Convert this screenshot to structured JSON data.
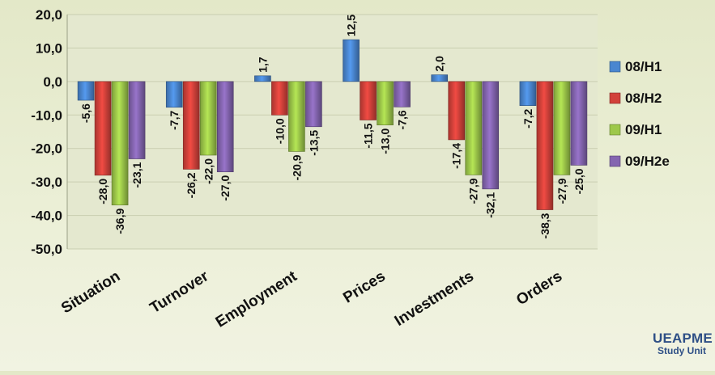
{
  "chart_data": {
    "type": "bar",
    "title": "",
    "categories": [
      "Situation",
      "Turnover",
      "Employment",
      "Prices",
      "Investments",
      "Orders"
    ],
    "series": [
      {
        "name": "08/H1",
        "values": [
          -5.6,
          -7.7,
          1.7,
          12.5,
          2.0,
          -7.2
        ],
        "color": "#4a86d0"
      },
      {
        "name": "08/H2",
        "values": [
          -28.0,
          -26.2,
          -10.0,
          -11.5,
          -17.4,
          -38.3
        ],
        "color": "#d2413a"
      },
      {
        "name": "09/H1",
        "values": [
          -36.9,
          -22.0,
          -20.9,
          -13.0,
          -27.9,
          -27.9
        ],
        "color": "#9dc84a"
      },
      {
        "name": "09/H2e",
        "values": [
          -23.1,
          -27.0,
          -13.5,
          -7.6,
          -32.1,
          -25.0
        ],
        "color": "#8465b0"
      }
    ],
    "value_labels": [
      [
        "-5,6",
        "-7,7",
        "1,7",
        "12,5",
        "2,0",
        "-7,2"
      ],
      [
        "-28,0",
        "-26,2",
        "-10,0",
        "-11,5",
        "-17,4",
        "-38,3"
      ],
      [
        "-36,9",
        "-22,0",
        "-20,9",
        "-13,0",
        "-27,9",
        "-27,9"
      ],
      [
        "-23,1",
        "-27,0",
        "-13,5",
        "-7,6",
        "-32,1",
        "-25,0"
      ]
    ],
    "ylim": [
      -50,
      20
    ],
    "yticks": [
      20,
      10,
      0,
      -10,
      -20,
      -30,
      -40,
      -50
    ],
    "ytick_labels": [
      "20,0",
      "10,0",
      "0,0",
      "-10,0",
      "-20,0",
      "-30,0",
      "-40,0",
      "-50,0"
    ],
    "grid": true,
    "legend_position": "right"
  },
  "logo": {
    "line1": "UEAPME",
    "line2": "Study Unit"
  },
  "colors": {
    "plot_bg": "#e4e8cf",
    "gridline": "#c9ceb0",
    "text": "#111111",
    "logo": "#2e4f86"
  }
}
